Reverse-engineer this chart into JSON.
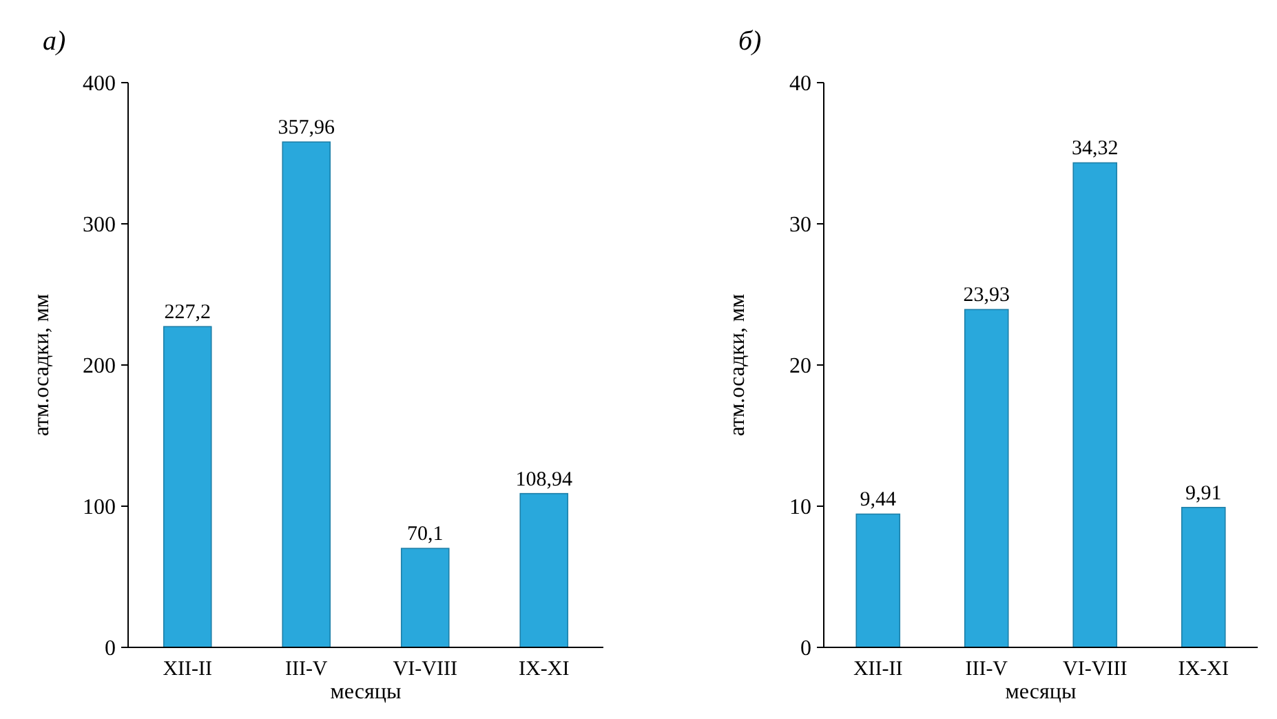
{
  "chart_data": [
    {
      "type": "bar",
      "title": "а)",
      "xlabel": "месяцы",
      "ylabel": "атм.осадки, мм",
      "categories": [
        "XII-II",
        "III-V",
        "VI-VIII",
        "IX-XI"
      ],
      "values": [
        227.2,
        357.96,
        70.1,
        108.94
      ],
      "value_labels": [
        "227,2",
        "357,96",
        "70,1",
        "108,94"
      ],
      "color": "#29a8dc",
      "ylim": [
        0,
        400
      ],
      "yticks": [
        0,
        100,
        200,
        300,
        400
      ],
      "grid": false
    },
    {
      "type": "bar",
      "title": "б)",
      "xlabel": "месяцы",
      "ylabel": "атм.осадки, мм",
      "categories": [
        "XII-II",
        "III-V",
        "VI-VIII",
        "IX-XI"
      ],
      "values": [
        9.44,
        23.93,
        34.32,
        9.91
      ],
      "value_labels": [
        "9,44",
        "23,93",
        "34,32",
        "9,91"
      ],
      "color": "#29a8dc",
      "ylim": [
        0,
        40
      ],
      "yticks": [
        0,
        10,
        20,
        30,
        40
      ],
      "grid": false
    }
  ]
}
